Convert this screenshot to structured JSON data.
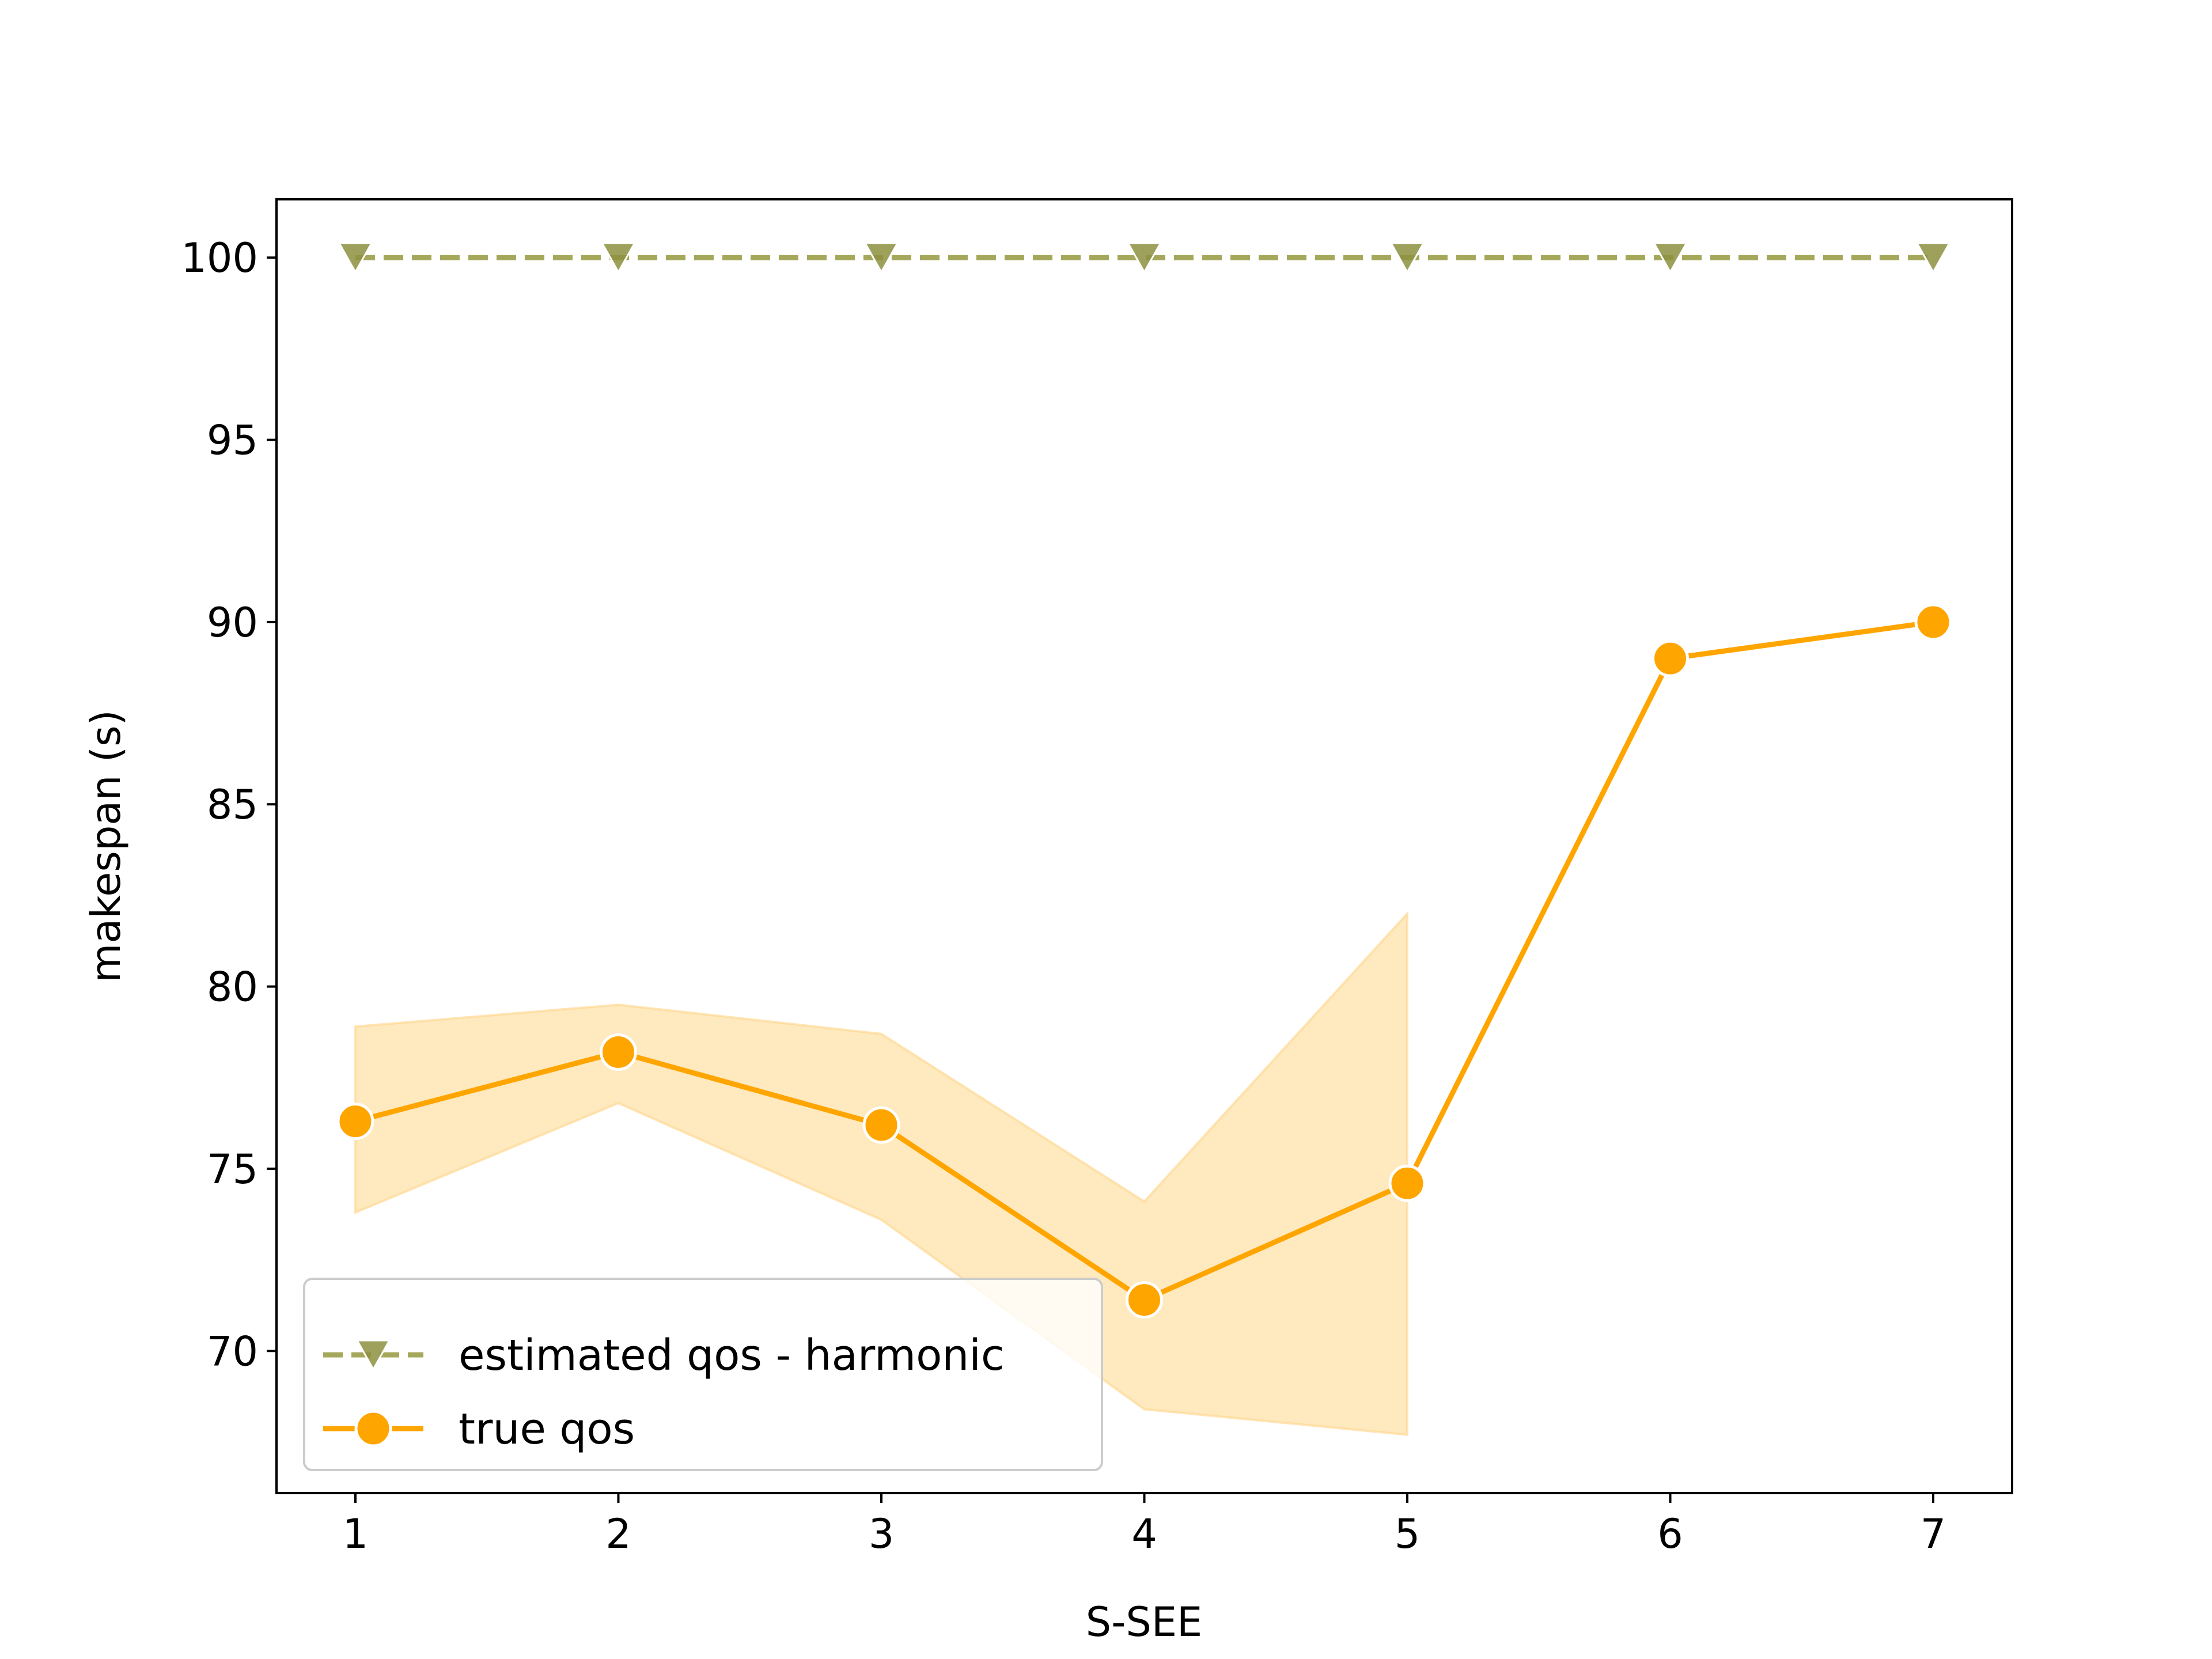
{
  "chart_data": {
    "type": "line",
    "title": "",
    "xlabel": "S-SEE",
    "ylabel": "makespan (s)",
    "xlim": [
      0.7,
      7.3
    ],
    "ylim": [
      66.1,
      101.6
    ],
    "xticks": [
      1,
      2,
      3,
      4,
      5,
      6,
      7
    ],
    "yticks": [
      70,
      75,
      80,
      85,
      90,
      95,
      100
    ],
    "grid": false,
    "legend_position": "lower-left",
    "x": [
      1,
      2,
      3,
      4,
      5,
      6,
      7
    ],
    "series": [
      {
        "name": "estimated qos - harmonic",
        "values": [
          100,
          100,
          100,
          100,
          100,
          100,
          100
        ],
        "color": "#a5a75a",
        "marker": "triangle-down",
        "line_style": "dashed"
      },
      {
        "name": "true qos",
        "values": [
          76.3,
          78.2,
          76.2,
          71.4,
          74.6,
          89.0,
          90.0
        ],
        "lower": [
          73.8,
          76.8,
          73.6,
          68.4,
          67.7,
          null,
          null
        ],
        "upper": [
          78.9,
          79.5,
          78.7,
          74.1,
          82.0,
          null,
          null
        ],
        "color": "#ffa500",
        "band_color": "#ffe9bf",
        "marker": "circle",
        "line_style": "solid"
      }
    ]
  }
}
